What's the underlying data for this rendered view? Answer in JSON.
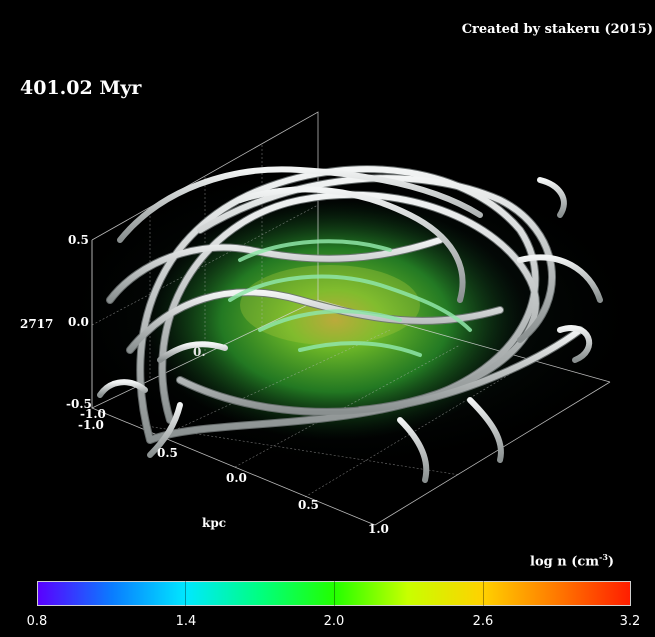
{
  "credit": "Created by stakeru (2015)",
  "time": "401.02 Myr",
  "colorbar": {
    "title": "log n (cm",
    "title_exp": "-3",
    "title_close": ")",
    "ticks": [
      "0.8",
      "1.4",
      "2.0",
      "2.6",
      "3.2"
    ],
    "colors": [
      "#5a00ff",
      "#0a7cff",
      "#00e8ff",
      "#00ff80",
      "#22ff00",
      "#c8ff00",
      "#ffd200",
      "#ff7a00",
      "#ff1e00"
    ]
  },
  "axes": {
    "z_labels": [
      "0.5",
      "0.0",
      "-0.5"
    ],
    "z_extra": "2717",
    "y_labels": [
      "-1.0",
      "-1.0",
      "0.5"
    ],
    "x_labels": [
      "0.0",
      "0.5",
      "1.0"
    ],
    "x_unit": "kpc",
    "inner_label": "0."
  },
  "scene": {
    "background": "#000000",
    "disk_color": "#2fbf3a",
    "tube_color": "#c7cccc"
  }
}
